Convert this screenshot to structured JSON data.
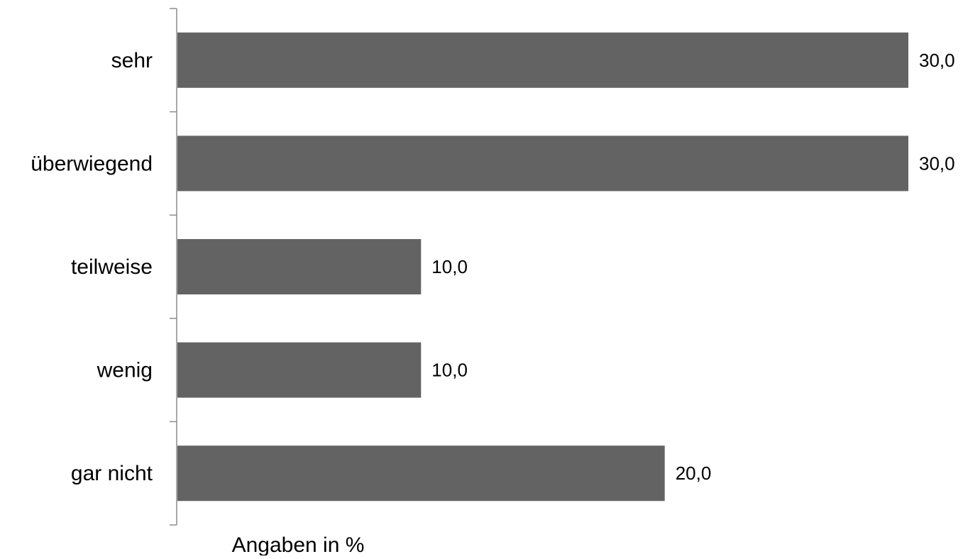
{
  "chart_data": {
    "type": "bar",
    "orientation": "horizontal",
    "categories": [
      "sehr",
      "überwiegend",
      "teilweise",
      "wenig",
      "gar nicht"
    ],
    "values": [
      30.0,
      30.0,
      10.0,
      10.0,
      20.0
    ],
    "value_labels": [
      "30,0",
      "30,0",
      "10,0",
      "10,0",
      "20,0"
    ],
    "xlabel": "Angaben in %",
    "ylabel": "",
    "xlim": [
      0,
      30
    ],
    "grid": false,
    "legend": "none",
    "bar_color": "#636363",
    "axis_color": "#8c8c8c"
  }
}
